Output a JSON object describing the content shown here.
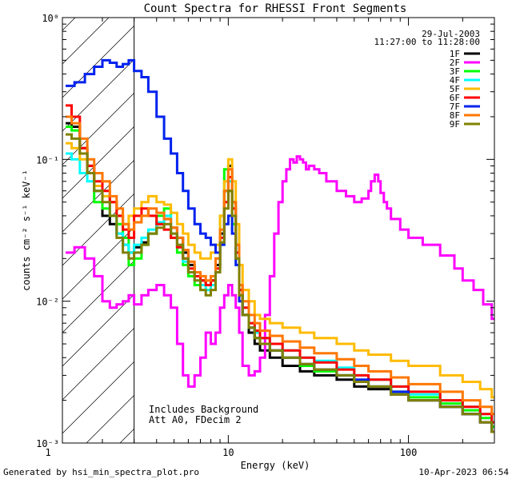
{
  "chart_data": {
    "type": "line",
    "title": "Count Spectra for RHESSI Front Segments",
    "xlabel": "Energy (keV)",
    "ylabel": "counts cm⁻² s⁻¹ keV⁻¹",
    "x_scale": "log",
    "y_scale": "log",
    "xlim": [
      1.2,
      300
    ],
    "ylim": [
      0.001,
      1.0
    ],
    "x_tick_labels": [
      "1",
      "10",
      "100"
    ],
    "y_tick_labels": [
      "10⁻³",
      "10⁻²",
      "10⁻¹",
      "10⁰"
    ],
    "x_major_ticks": [
      1,
      10,
      100
    ],
    "y_major_ticks": [
      0.001,
      0.01,
      0.1,
      1.0
    ],
    "grid": false,
    "legend_placement": "top-right",
    "date": "29-Jul-2003",
    "time_range": "11:27:00 to 11:28:00",
    "attenuator_cutoff_kev": 3.0,
    "annotations": [
      "Includes Background",
      "Att A0, FDecim 2"
    ],
    "footer_left": "Generated by hsi_min_spectra_plot.pro",
    "footer_right": "10-Apr-2023 06:54",
    "series": [
      {
        "name": "1F",
        "color": "#000000",
        "x": [
          1.25,
          1.35,
          1.5,
          1.65,
          1.8,
          2.0,
          2.2,
          2.4,
          2.6,
          2.8,
          3.0,
          3.3,
          3.6,
          4.0,
          4.4,
          4.8,
          5.2,
          5.6,
          6.0,
          6.5,
          7.0,
          7.5,
          8.0,
          8.5,
          9.0,
          9.5,
          10.0,
          10.5,
          11.0,
          11.5,
          12.0,
          13.0,
          14.0,
          15.0,
          17.0,
          20.0,
          25.0,
          30.0,
          40.0,
          50.0,
          60.0,
          80.0,
          100.0,
          150.0,
          200.0,
          250.0,
          290.0
        ],
        "y": [
          0.18,
          0.17,
          0.12,
          0.09,
          0.06,
          0.04,
          0.035,
          0.03,
          0.025,
          0.022,
          0.024,
          0.026,
          0.03,
          0.035,
          0.038,
          0.033,
          0.028,
          0.022,
          0.018,
          0.016,
          0.014,
          0.013,
          0.014,
          0.018,
          0.03,
          0.06,
          0.09,
          0.05,
          0.025,
          0.012,
          0.008,
          0.006,
          0.005,
          0.0045,
          0.004,
          0.0035,
          0.0032,
          0.003,
          0.0028,
          0.0025,
          0.0024,
          0.0022,
          0.002,
          0.0018,
          0.0016,
          0.0014,
          0.0012
        ]
      },
      {
        "name": "2F",
        "color": "#ff00ff",
        "x": [
          1.25,
          1.4,
          1.6,
          1.8,
          2.0,
          2.2,
          2.4,
          2.6,
          2.8,
          3.0,
          3.3,
          3.6,
          4.0,
          4.4,
          4.8,
          5.2,
          5.6,
          6.0,
          6.5,
          7.0,
          7.5,
          8.0,
          8.5,
          9.0,
          9.5,
          10.0,
          10.5,
          11.0,
          11.5,
          12.0,
          13.0,
          14.0,
          15.0,
          16.0,
          17.0,
          18.0,
          19.0,
          20.0,
          21.0,
          22.0,
          23.0,
          24.0,
          25.0,
          26.0,
          27.0,
          28.0,
          30.0,
          32.0,
          35.0,
          40.0,
          45.0,
          50.0,
          55.0,
          60.0,
          62.0,
          65.0,
          68.0,
          70.0,
          73.0,
          76.0,
          80.0,
          90.0,
          100.0,
          120.0,
          150.0,
          180.0,
          200.0,
          230.0,
          260.0,
          290.0
        ],
        "y": [
          0.022,
          0.024,
          0.02,
          0.015,
          0.01,
          0.009,
          0.0095,
          0.01,
          0.011,
          0.0095,
          0.011,
          0.012,
          0.013,
          0.011,
          0.009,
          0.005,
          0.003,
          0.0025,
          0.003,
          0.004,
          0.006,
          0.005,
          0.006,
          0.009,
          0.011,
          0.013,
          0.011,
          0.009,
          0.006,
          0.0035,
          0.003,
          0.0032,
          0.004,
          0.008,
          0.015,
          0.03,
          0.05,
          0.07,
          0.085,
          0.1,
          0.095,
          0.105,
          0.1,
          0.095,
          0.085,
          0.09,
          0.085,
          0.08,
          0.07,
          0.06,
          0.055,
          0.05,
          0.053,
          0.06,
          0.07,
          0.078,
          0.07,
          0.058,
          0.05,
          0.045,
          0.038,
          0.032,
          0.028,
          0.025,
          0.021,
          0.017,
          0.014,
          0.012,
          0.0095,
          0.0075
        ]
      },
      {
        "name": "3F",
        "color": "#00ff00",
        "x": [
          1.25,
          1.35,
          1.5,
          1.65,
          1.8,
          2.0,
          2.2,
          2.4,
          2.6,
          2.8,
          3.0,
          3.3,
          3.6,
          4.0,
          4.4,
          4.8,
          5.2,
          5.6,
          6.0,
          6.5,
          7.0,
          7.5,
          8.0,
          8.5,
          9.0,
          9.5,
          10.0,
          10.5,
          11.0,
          11.5,
          12.0,
          13.0,
          14.0,
          15.0,
          17.0,
          20.0,
          25.0,
          30.0,
          40.0,
          50.0,
          60.0,
          80.0,
          100.0,
          150.0,
          200.0,
          250.0,
          290.0
        ],
        "y": [
          0.17,
          0.16,
          0.11,
          0.08,
          0.05,
          0.045,
          0.04,
          0.035,
          0.028,
          0.018,
          0.02,
          0.025,
          0.03,
          0.04,
          0.045,
          0.028,
          0.022,
          0.018,
          0.015,
          0.013,
          0.012,
          0.012,
          0.014,
          0.02,
          0.04,
          0.085,
          0.06,
          0.035,
          0.02,
          0.011,
          0.008,
          0.0065,
          0.0055,
          0.005,
          0.0045,
          0.004,
          0.0035,
          0.0032,
          0.003,
          0.0027,
          0.0025,
          0.0023,
          0.0021,
          0.0019,
          0.0017,
          0.0015,
          0.0013
        ]
      },
      {
        "name": "4F",
        "color": "#00ffff",
        "x": [
          1.25,
          1.35,
          1.5,
          1.65,
          1.8,
          2.0,
          2.2,
          2.4,
          2.6,
          2.8,
          3.0,
          3.3,
          3.6,
          4.0,
          4.4,
          4.8,
          5.2,
          5.6,
          6.0,
          6.5,
          7.0,
          7.5,
          8.0,
          8.5,
          9.0,
          9.5,
          10.0,
          10.5,
          11.0,
          11.5,
          12.0,
          13.0,
          14.0,
          15.0,
          17.0,
          20.0,
          25.0,
          30.0,
          40.0,
          50.0,
          60.0,
          80.0,
          100.0,
          150.0,
          200.0,
          250.0,
          290.0
        ],
        "y": [
          0.11,
          0.1,
          0.08,
          0.07,
          0.06,
          0.055,
          0.04,
          0.03,
          0.025,
          0.022,
          0.025,
          0.028,
          0.032,
          0.036,
          0.04,
          0.03,
          0.024,
          0.019,
          0.016,
          0.014,
          0.013,
          0.012,
          0.013,
          0.017,
          0.028,
          0.05,
          0.07,
          0.045,
          0.022,
          0.012,
          0.009,
          0.007,
          0.006,
          0.0055,
          0.005,
          0.0045,
          0.004,
          0.0038,
          0.0034,
          0.003,
          0.0028,
          0.0025,
          0.0022,
          0.002,
          0.0018,
          0.0016,
          0.0014
        ]
      },
      {
        "name": "5F",
        "color": "#ffbb00",
        "x": [
          1.25,
          1.35,
          1.5,
          1.65,
          1.8,
          2.0,
          2.2,
          2.4,
          2.6,
          2.8,
          3.0,
          3.3,
          3.6,
          4.0,
          4.4,
          4.8,
          5.2,
          5.6,
          6.0,
          6.5,
          7.0,
          7.5,
          8.0,
          8.5,
          9.0,
          9.5,
          10.0,
          10.5,
          11.0,
          11.5,
          12.0,
          13.0,
          14.0,
          15.0,
          17.0,
          20.0,
          25.0,
          30.0,
          40.0,
          50.0,
          60.0,
          80.0,
          100.0,
          150.0,
          200.0,
          250.0,
          290.0
        ],
        "y": [
          0.13,
          0.12,
          0.1,
          0.08,
          0.065,
          0.055,
          0.05,
          0.04,
          0.035,
          0.04,
          0.045,
          0.05,
          0.055,
          0.05,
          0.048,
          0.042,
          0.035,
          0.03,
          0.025,
          0.022,
          0.02,
          0.02,
          0.022,
          0.025,
          0.04,
          0.07,
          0.1,
          0.07,
          0.035,
          0.018,
          0.012,
          0.01,
          0.008,
          0.0075,
          0.007,
          0.0065,
          0.006,
          0.0055,
          0.005,
          0.0045,
          0.0042,
          0.0038,
          0.0035,
          0.003,
          0.0027,
          0.0024,
          0.0021
        ]
      },
      {
        "name": "6F",
        "color": "#ff0000",
        "x": [
          1.25,
          1.35,
          1.5,
          1.65,
          1.8,
          2.0,
          2.2,
          2.4,
          2.6,
          2.8,
          3.0,
          3.3,
          3.6,
          4.0,
          4.4,
          4.8,
          5.2,
          5.6,
          6.0,
          6.5,
          7.0,
          7.5,
          8.0,
          8.5,
          9.0,
          9.5,
          10.0,
          10.5,
          11.0,
          11.5,
          12.0,
          13.0,
          14.0,
          15.0,
          17.0,
          20.0,
          25.0,
          30.0,
          40.0,
          50.0,
          60.0,
          80.0,
          100.0,
          150.0,
          200.0,
          250.0,
          290.0
        ],
        "y": [
          0.24,
          0.2,
          0.12,
          0.09,
          0.07,
          0.06,
          0.05,
          0.04,
          0.032,
          0.028,
          0.04,
          0.045,
          0.04,
          0.035,
          0.032,
          0.028,
          0.024,
          0.02,
          0.017,
          0.015,
          0.014,
          0.013,
          0.014,
          0.017,
          0.028,
          0.05,
          0.075,
          0.045,
          0.022,
          0.012,
          0.009,
          0.007,
          0.0062,
          0.0055,
          0.005,
          0.0045,
          0.004,
          0.0037,
          0.0033,
          0.003,
          0.0028,
          0.0025,
          0.0023,
          0.002,
          0.0018,
          0.0016,
          0.0014
        ]
      },
      {
        "name": "7F",
        "color": "#0022ee",
        "x": [
          1.25,
          1.4,
          1.6,
          1.8,
          2.0,
          2.2,
          2.4,
          2.6,
          2.8,
          3.0,
          3.3,
          3.6,
          4.0,
          4.4,
          4.8,
          5.2,
          5.6,
          6.0,
          6.5,
          7.0,
          7.5,
          8.0,
          8.5,
          9.0,
          9.5,
          10.0,
          10.5,
          11.0,
          11.5,
          12.0,
          13.0,
          14.0,
          15.0,
          17.0,
          20.0,
          25.0,
          30.0,
          40.0,
          50.0,
          60.0,
          80.0,
          100.0,
          150.0,
          200.0,
          250.0,
          290.0
        ],
        "y": [
          0.33,
          0.35,
          0.4,
          0.45,
          0.5,
          0.48,
          0.45,
          0.47,
          0.5,
          0.42,
          0.38,
          0.3,
          0.2,
          0.14,
          0.11,
          0.08,
          0.06,
          0.045,
          0.035,
          0.03,
          0.028,
          0.025,
          0.022,
          0.025,
          0.035,
          0.04,
          0.03,
          0.018,
          0.01,
          0.008,
          0.0065,
          0.0055,
          0.005,
          0.0045,
          0.004,
          0.0036,
          0.0033,
          0.003,
          0.0028,
          0.0025,
          0.0023,
          0.002,
          0.0018,
          0.0016,
          0.0014,
          0.0012
        ]
      },
      {
        "name": "8F",
        "color": "#ff7700",
        "x": [
          1.25,
          1.35,
          1.5,
          1.65,
          1.8,
          2.0,
          2.2,
          2.4,
          2.6,
          2.8,
          3.0,
          3.3,
          3.6,
          4.0,
          4.4,
          4.8,
          5.2,
          5.6,
          6.0,
          6.5,
          7.0,
          7.5,
          8.0,
          8.5,
          9.0,
          9.5,
          10.0,
          10.5,
          11.0,
          11.5,
          12.0,
          13.0,
          14.0,
          15.0,
          17.0,
          20.0,
          25.0,
          30.0,
          40.0,
          50.0,
          60.0,
          80.0,
          100.0,
          150.0,
          200.0,
          250.0,
          290.0
        ],
        "y": [
          0.2,
          0.18,
          0.14,
          0.1,
          0.08,
          0.07,
          0.055,
          0.045,
          0.035,
          0.032,
          0.036,
          0.04,
          0.045,
          0.042,
          0.038,
          0.033,
          0.028,
          0.023,
          0.019,
          0.016,
          0.015,
          0.014,
          0.015,
          0.02,
          0.032,
          0.06,
          0.085,
          0.05,
          0.025,
          0.013,
          0.01,
          0.008,
          0.007,
          0.0062,
          0.0057,
          0.0052,
          0.0047,
          0.0043,
          0.0039,
          0.0035,
          0.0032,
          0.0029,
          0.0026,
          0.0023,
          0.002,
          0.0018,
          0.0016
        ]
      },
      {
        "name": "9F",
        "color": "#808000",
        "x": [
          1.25,
          1.35,
          1.5,
          1.65,
          1.8,
          2.0,
          2.2,
          2.4,
          2.6,
          2.8,
          3.0,
          3.3,
          3.6,
          4.0,
          4.4,
          4.8,
          5.2,
          5.6,
          6.0,
          6.5,
          7.0,
          7.5,
          8.0,
          8.5,
          9.0,
          9.5,
          10.0,
          10.5,
          11.0,
          11.5,
          12.0,
          13.0,
          14.0,
          15.0,
          17.0,
          20.0,
          25.0,
          30.0,
          40.0,
          50.0,
          60.0,
          80.0,
          100.0,
          150.0,
          200.0,
          250.0,
          290.0
        ],
        "y": [
          0.15,
          0.14,
          0.11,
          0.08,
          0.06,
          0.05,
          0.04,
          0.028,
          0.022,
          0.02,
          0.022,
          0.025,
          0.03,
          0.033,
          0.035,
          0.03,
          0.025,
          0.02,
          0.016,
          0.014,
          0.012,
          0.011,
          0.012,
          0.016,
          0.026,
          0.045,
          0.06,
          0.04,
          0.02,
          0.011,
          0.008,
          0.0065,
          0.0055,
          0.005,
          0.0045,
          0.004,
          0.0036,
          0.0033,
          0.003,
          0.0027,
          0.0025,
          0.0022,
          0.002,
          0.0018,
          0.0016,
          0.0014,
          0.0012
        ]
      }
    ]
  }
}
